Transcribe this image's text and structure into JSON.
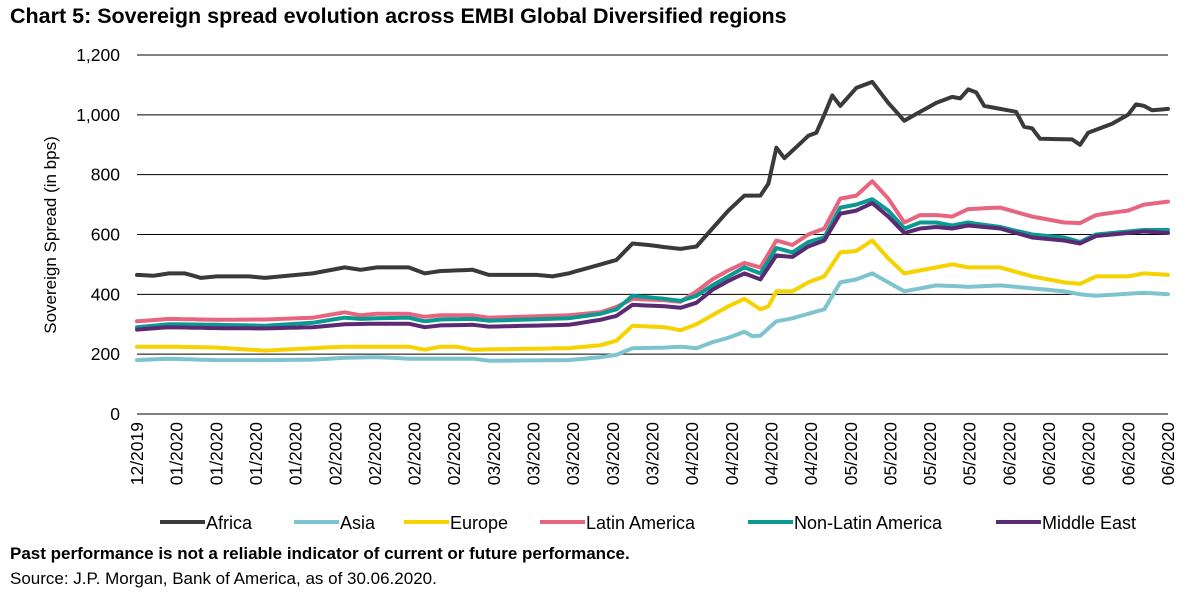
{
  "title": "Chart 5: Sovereign spread evolution across EMBI Global Diversified regions",
  "disclaimer": "Past performance is not a reliable indicator of current or future performance.",
  "source": "Source: J.P. Morgan, Bank of America, as of 30.06.2020.",
  "chart_data": {
    "type": "line",
    "title": "Chart 5: Sovereign spread evolution across EMBI Global Diversified regions",
    "xlabel": "",
    "ylabel": "Sovereign Spread (in bps)",
    "ylim": [
      0,
      1200
    ],
    "yticks": [
      0,
      200,
      400,
      600,
      800,
      1000,
      1200
    ],
    "ytick_labels": [
      "0",
      "200",
      "400",
      "600",
      "800",
      "1,000",
      "1,200"
    ],
    "x_tick_labels": [
      "12/2019",
      "01/2020",
      "01/2020",
      "01/2020",
      "01/2020",
      "02/2020",
      "02/2020",
      "02/2020",
      "02/2020",
      "03/2020",
      "03/2020",
      "03/2020",
      "03/2020",
      "03/2020",
      "04/2020",
      "04/2020",
      "04/2020",
      "04/2020",
      "05/2020",
      "05/2020",
      "05/2020",
      "05/2020",
      "06/2020",
      "06/2020",
      "06/2020",
      "06/2020",
      "06/2020"
    ],
    "x_points": 130,
    "grid": "horizontal",
    "legend_position": "bottom",
    "series": [
      {
        "name": "Africa",
        "color": "#3a3a3a",
        "anchors": [
          [
            0,
            465
          ],
          [
            2,
            462
          ],
          [
            4,
            470
          ],
          [
            6,
            470
          ],
          [
            8,
            455
          ],
          [
            10,
            460
          ],
          [
            14,
            460
          ],
          [
            16,
            455
          ],
          [
            22,
            470
          ],
          [
            26,
            490
          ],
          [
            28,
            482
          ],
          [
            30,
            490
          ],
          [
            34,
            490
          ],
          [
            36,
            470
          ],
          [
            38,
            478
          ],
          [
            42,
            482
          ],
          [
            44,
            465
          ],
          [
            50,
            465
          ],
          [
            52,
            460
          ],
          [
            54,
            470
          ],
          [
            58,
            500
          ],
          [
            60,
            515
          ],
          [
            62,
            570
          ],
          [
            64,
            565
          ],
          [
            66,
            558
          ],
          [
            68,
            552
          ],
          [
            70,
            560
          ],
          [
            72,
            620
          ],
          [
            74,
            680
          ],
          [
            76,
            730
          ],
          [
            78,
            730
          ],
          [
            79,
            770
          ],
          [
            80,
            890
          ],
          [
            81,
            855
          ],
          [
            84,
            930
          ],
          [
            85,
            940
          ],
          [
            86,
            1000
          ],
          [
            87,
            1065
          ],
          [
            88,
            1030
          ],
          [
            90,
            1090
          ],
          [
            92,
            1110
          ],
          [
            94,
            1040
          ],
          [
            96,
            980
          ],
          [
            98,
            1010
          ],
          [
            100,
            1040
          ],
          [
            102,
            1060
          ],
          [
            103,
            1055
          ],
          [
            104,
            1085
          ],
          [
            105,
            1075
          ],
          [
            106,
            1030
          ],
          [
            108,
            1020
          ],
          [
            110,
            1010
          ],
          [
            111,
            960
          ],
          [
            112,
            955
          ],
          [
            113,
            920
          ],
          [
            117,
            918
          ],
          [
            118,
            900
          ],
          [
            119,
            940
          ],
          [
            120,
            950
          ],
          [
            122,
            970
          ],
          [
            124,
            1000
          ],
          [
            125,
            1035
          ],
          [
            126,
            1030
          ],
          [
            127,
            1015
          ],
          [
            129,
            1020
          ]
        ]
      },
      {
        "name": "Asia",
        "color": "#7ec4cf",
        "anchors": [
          [
            0,
            180
          ],
          [
            4,
            185
          ],
          [
            10,
            180
          ],
          [
            16,
            180
          ],
          [
            22,
            182
          ],
          [
            26,
            188
          ],
          [
            30,
            190
          ],
          [
            34,
            185
          ],
          [
            42,
            185
          ],
          [
            44,
            178
          ],
          [
            54,
            180
          ],
          [
            58,
            190
          ],
          [
            60,
            198
          ],
          [
            62,
            220
          ],
          [
            66,
            222
          ],
          [
            68,
            225
          ],
          [
            70,
            220
          ],
          [
            72,
            240
          ],
          [
            74,
            255
          ],
          [
            76,
            275
          ],
          [
            77,
            260
          ],
          [
            78,
            262
          ],
          [
            80,
            310
          ],
          [
            82,
            320
          ],
          [
            84,
            335
          ],
          [
            86,
            350
          ],
          [
            88,
            440
          ],
          [
            90,
            450
          ],
          [
            92,
            470
          ],
          [
            94,
            440
          ],
          [
            96,
            410
          ],
          [
            98,
            420
          ],
          [
            100,
            430
          ],
          [
            102,
            428
          ],
          [
            104,
            425
          ],
          [
            108,
            430
          ],
          [
            112,
            420
          ],
          [
            116,
            410
          ],
          [
            118,
            400
          ],
          [
            120,
            395
          ],
          [
            124,
            402
          ],
          [
            126,
            405
          ],
          [
            129,
            400
          ]
        ]
      },
      {
        "name": "Europe",
        "color": "#f5d200",
        "anchors": [
          [
            0,
            225
          ],
          [
            4,
            225
          ],
          [
            10,
            222
          ],
          [
            16,
            212
          ],
          [
            22,
            220
          ],
          [
            26,
            225
          ],
          [
            30,
            225
          ],
          [
            34,
            225
          ],
          [
            36,
            215
          ],
          [
            38,
            225
          ],
          [
            40,
            225
          ],
          [
            42,
            215
          ],
          [
            54,
            220
          ],
          [
            58,
            230
          ],
          [
            60,
            245
          ],
          [
            62,
            295
          ],
          [
            66,
            290
          ],
          [
            68,
            280
          ],
          [
            70,
            300
          ],
          [
            72,
            330
          ],
          [
            74,
            360
          ],
          [
            76,
            385
          ],
          [
            78,
            350
          ],
          [
            79,
            360
          ],
          [
            80,
            410
          ],
          [
            82,
            410
          ],
          [
            84,
            440
          ],
          [
            86,
            460
          ],
          [
            88,
            540
          ],
          [
            90,
            545
          ],
          [
            92,
            580
          ],
          [
            94,
            520
          ],
          [
            96,
            470
          ],
          [
            98,
            480
          ],
          [
            100,
            490
          ],
          [
            102,
            500
          ],
          [
            104,
            490
          ],
          [
            108,
            490
          ],
          [
            112,
            460
          ],
          [
            116,
            440
          ],
          [
            118,
            435
          ],
          [
            120,
            460
          ],
          [
            124,
            460
          ],
          [
            126,
            470
          ],
          [
            129,
            465
          ]
        ]
      },
      {
        "name": "Latin America",
        "color": "#e8657f",
        "anchors": [
          [
            0,
            310
          ],
          [
            4,
            318
          ],
          [
            10,
            315
          ],
          [
            16,
            316
          ],
          [
            22,
            322
          ],
          [
            26,
            340
          ],
          [
            28,
            330
          ],
          [
            30,
            335
          ],
          [
            34,
            335
          ],
          [
            36,
            325
          ],
          [
            38,
            330
          ],
          [
            42,
            330
          ],
          [
            44,
            322
          ],
          [
            54,
            330
          ],
          [
            58,
            340
          ],
          [
            60,
            358
          ],
          [
            62,
            385
          ],
          [
            66,
            380
          ],
          [
            68,
            375
          ],
          [
            70,
            410
          ],
          [
            72,
            450
          ],
          [
            74,
            480
          ],
          [
            76,
            505
          ],
          [
            78,
            490
          ],
          [
            80,
            580
          ],
          [
            82,
            565
          ],
          [
            84,
            600
          ],
          [
            86,
            620
          ],
          [
            88,
            720
          ],
          [
            90,
            730
          ],
          [
            92,
            778
          ],
          [
            94,
            720
          ],
          [
            96,
            640
          ],
          [
            98,
            665
          ],
          [
            100,
            665
          ],
          [
            102,
            660
          ],
          [
            104,
            685
          ],
          [
            108,
            690
          ],
          [
            112,
            660
          ],
          [
            116,
            640
          ],
          [
            118,
            638
          ],
          [
            120,
            665
          ],
          [
            124,
            680
          ],
          [
            126,
            700
          ],
          [
            129,
            710
          ]
        ]
      },
      {
        "name": "Non-Latin America",
        "color": "#0a9a92",
        "anchors": [
          [
            0,
            290
          ],
          [
            4,
            300
          ],
          [
            10,
            298
          ],
          [
            16,
            295
          ],
          [
            22,
            305
          ],
          [
            26,
            322
          ],
          [
            28,
            318
          ],
          [
            30,
            320
          ],
          [
            34,
            322
          ],
          [
            36,
            310
          ],
          [
            38,
            316
          ],
          [
            42,
            318
          ],
          [
            44,
            312
          ],
          [
            54,
            320
          ],
          [
            58,
            335
          ],
          [
            60,
            350
          ],
          [
            62,
            395
          ],
          [
            66,
            385
          ],
          [
            68,
            378
          ],
          [
            70,
            395
          ],
          [
            72,
            430
          ],
          [
            74,
            460
          ],
          [
            76,
            490
          ],
          [
            78,
            470
          ],
          [
            80,
            555
          ],
          [
            82,
            540
          ],
          [
            84,
            575
          ],
          [
            86,
            590
          ],
          [
            88,
            690
          ],
          [
            90,
            700
          ],
          [
            92,
            718
          ],
          [
            94,
            680
          ],
          [
            96,
            620
          ],
          [
            98,
            640
          ],
          [
            100,
            640
          ],
          [
            102,
            630
          ],
          [
            104,
            640
          ],
          [
            108,
            625
          ],
          [
            112,
            600
          ],
          [
            116,
            590
          ],
          [
            118,
            575
          ],
          [
            120,
            600
          ],
          [
            124,
            610
          ],
          [
            126,
            615
          ],
          [
            129,
            615
          ]
        ]
      },
      {
        "name": "Middle East",
        "color": "#5b2a73",
        "anchors": [
          [
            0,
            282
          ],
          [
            4,
            290
          ],
          [
            10,
            287
          ],
          [
            16,
            286
          ],
          [
            22,
            290
          ],
          [
            26,
            300
          ],
          [
            30,
            302
          ],
          [
            34,
            302
          ],
          [
            36,
            290
          ],
          [
            38,
            296
          ],
          [
            42,
            298
          ],
          [
            44,
            292
          ],
          [
            54,
            298
          ],
          [
            58,
            315
          ],
          [
            60,
            328
          ],
          [
            62,
            365
          ],
          [
            66,
            360
          ],
          [
            68,
            355
          ],
          [
            70,
            372
          ],
          [
            72,
            415
          ],
          [
            74,
            445
          ],
          [
            76,
            470
          ],
          [
            78,
            450
          ],
          [
            80,
            530
          ],
          [
            82,
            525
          ],
          [
            84,
            560
          ],
          [
            86,
            580
          ],
          [
            88,
            670
          ],
          [
            90,
            680
          ],
          [
            92,
            705
          ],
          [
            94,
            660
          ],
          [
            96,
            605
          ],
          [
            98,
            620
          ],
          [
            100,
            625
          ],
          [
            102,
            620
          ],
          [
            104,
            630
          ],
          [
            108,
            620
          ],
          [
            112,
            590
          ],
          [
            116,
            580
          ],
          [
            118,
            570
          ],
          [
            120,
            595
          ],
          [
            124,
            605
          ],
          [
            126,
            610
          ],
          [
            129,
            605
          ]
        ]
      }
    ]
  }
}
